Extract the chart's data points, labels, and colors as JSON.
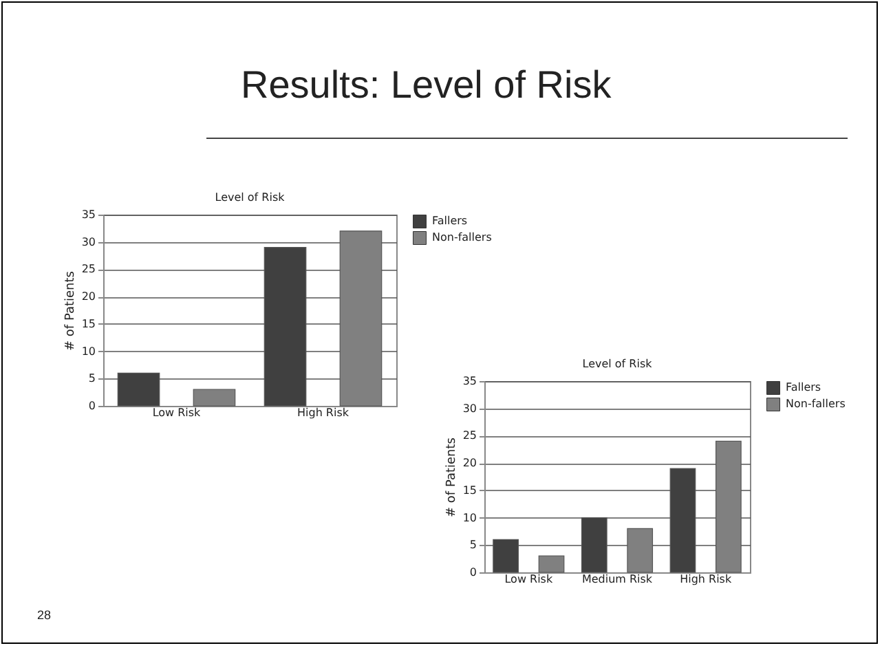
{
  "chart_data": [
    {
      "type": "bar",
      "title": "Level of Risk",
      "ylabel": "# of Patients",
      "categories": [
        "Low Risk",
        "High Risk"
      ],
      "series": [
        {
          "name": "Fallers",
          "color": "#404040",
          "values": [
            6,
            29
          ]
        },
        {
          "name": "Non-fallers",
          "color": "#808080",
          "values": [
            3,
            32
          ]
        }
      ],
      "ylim": [
        0,
        35
      ],
      "yticks": [
        0,
        5,
        10,
        15,
        20,
        25,
        30,
        35
      ],
      "grid": "y",
      "legend": "right",
      "annotations": [
        "Results: Level of Risk",
        "28"
      ]
    },
    {
      "type": "bar",
      "title": "Level of Risk",
      "ylabel": "# of Patients",
      "categories": [
        "Low Risk",
        "Medium Risk",
        "High Risk"
      ],
      "series": [
        {
          "name": "Fallers",
          "color": "#404040",
          "values": [
            6,
            10,
            19
          ]
        },
        {
          "name": "Non-fallers",
          "color": "#808080",
          "values": [
            3,
            8,
            24
          ]
        }
      ],
      "ylim": [
        0,
        35
      ],
      "yticks": [
        0,
        5,
        10,
        15,
        20,
        25,
        30,
        35
      ],
      "grid": "y",
      "legend": "right"
    }
  ]
}
